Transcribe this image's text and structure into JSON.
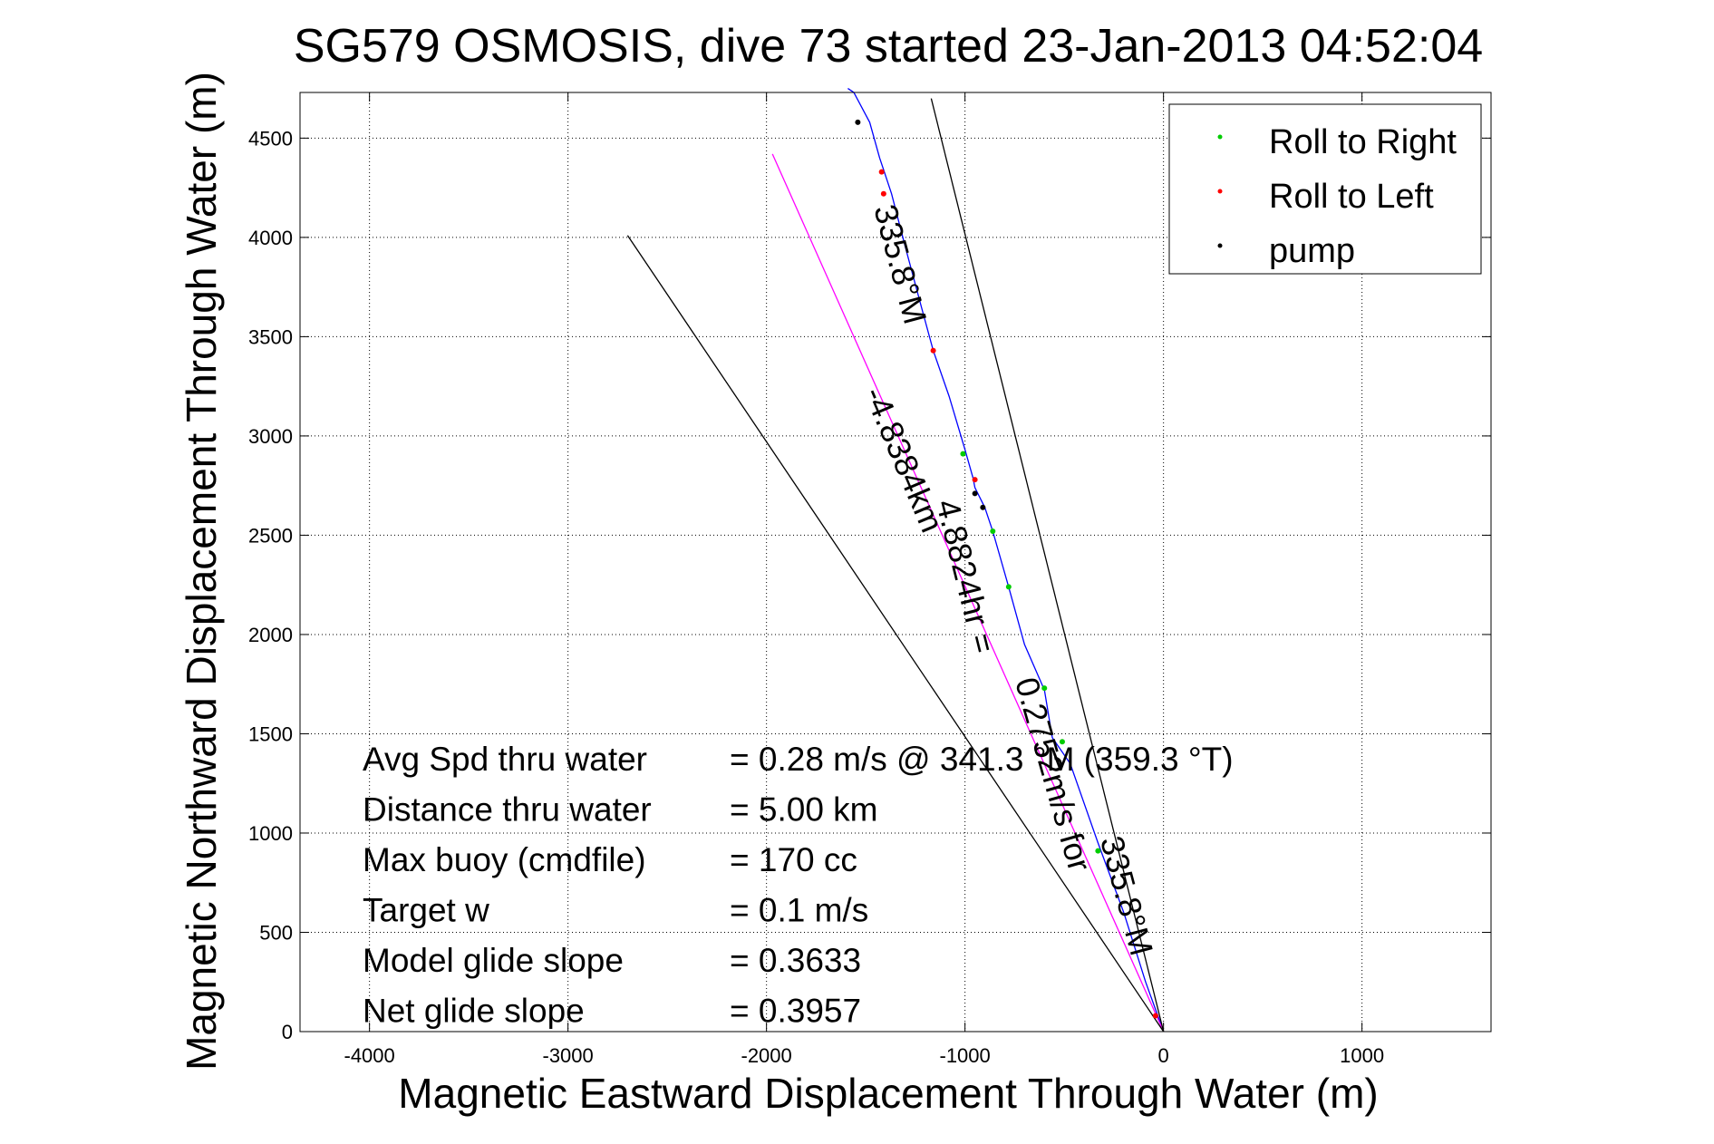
{
  "chart_data": {
    "type": "line",
    "title": "SG579 OSMOSIS, dive 73 started 23-Jan-2013 04:52:04",
    "xlabel": "Magnetic Eastward Displacement Through Water (m)",
    "ylabel": "Magnetic Northward Displacement Through Water (m)",
    "xlim": [
      -4350,
      1650
    ],
    "ylim": [
      0,
      4730
    ],
    "xticks": [
      -4000,
      -3000,
      -2000,
      -1000,
      0,
      1000
    ],
    "yticks": [
      0,
      500,
      1000,
      1500,
      2000,
      2500,
      3000,
      3500,
      4000,
      4500
    ],
    "grid": true,
    "legend_position": "top-right",
    "legend": [
      {
        "label": "Roll to Right",
        "color": "#00cc00"
      },
      {
        "label": "Roll to Left",
        "color": "#ff0000"
      },
      {
        "label": "pump",
        "color": "#000000"
      }
    ],
    "series": [
      {
        "color": "#0000ff",
        "x": [
          0,
          -90,
          -200,
          -330,
          -470,
          -560,
          -600,
          -700,
          -780,
          -860,
          -900,
          -950,
          -960,
          -1000,
          -1080,
          -1160,
          -1220,
          -1300,
          -1370,
          -1410,
          -1430,
          -1480,
          -1560,
          -1590
        ],
        "y": [
          0,
          250,
          600,
          950,
          1350,
          1480,
          1720,
          1950,
          2240,
          2520,
          2640,
          2740,
          2790,
          2930,
          3200,
          3430,
          3650,
          3950,
          4220,
          4340,
          4400,
          4580,
          4730,
          4750
        ]
      },
      {
        "color": "#ff00ff",
        "x": [
          0,
          -1970
        ],
        "y": [
          0,
          4420
        ]
      },
      {
        "color": "#000000",
        "x": [
          0,
          -2700
        ],
        "y": [
          0,
          4010
        ]
      },
      {
        "color": "#000000",
        "x": [
          0,
          -1170
        ],
        "y": [
          0,
          4700
        ]
      }
    ],
    "markers": {
      "roll_right": {
        "color": "#00cc00",
        "x": [
          -1010,
          -860,
          -780,
          -600,
          -510,
          -330
        ],
        "y": [
          2910,
          2520,
          2240,
          1730,
          1460,
          910
        ]
      },
      "roll_left": {
        "color": "#ff0000",
        "x": [
          -1420,
          -1410,
          -1160,
          -950,
          -40
        ],
        "y": [
          4330,
          4220,
          3430,
          2780,
          80
        ]
      },
      "pump": {
        "color": "#000000",
        "x": [
          -950,
          -910,
          -1540
        ],
        "y": [
          2710,
          2640,
          4580
        ]
      }
    },
    "annotations": [
      {
        "text": "335.8°M",
        "x": -1380,
        "y": 3850,
        "angle": 75
      },
      {
        "text": "-4.8384km",
        "x": -1360,
        "y": 2860,
        "angle": 67
      },
      {
        "text": "4.8824hr =",
        "x": -1050,
        "y": 2280,
        "angle": 76
      },
      {
        "text": "0.2752m/s for",
        "x": -610,
        "y": 1280,
        "angle": 74
      },
      {
        "text": "335.8°M",
        "x": -240,
        "y": 670,
        "angle": 75
      }
    ],
    "stats": [
      {
        "label": "Avg Spd thru water",
        "value": "=  0.28 m/s @ 341.3 °M (359.3 °T)"
      },
      {
        "label": "Distance thru water",
        "value": "=  5.00 km"
      },
      {
        "label": "Max buoy (cmdfile)",
        "value": "= 170 cc"
      },
      {
        "label": "Target w",
        "value": "= 0.1 m/s"
      },
      {
        "label": "Model glide slope",
        "value": "= 0.3633"
      },
      {
        "label": "Net glide slope",
        "value": "= 0.3957"
      }
    ]
  }
}
